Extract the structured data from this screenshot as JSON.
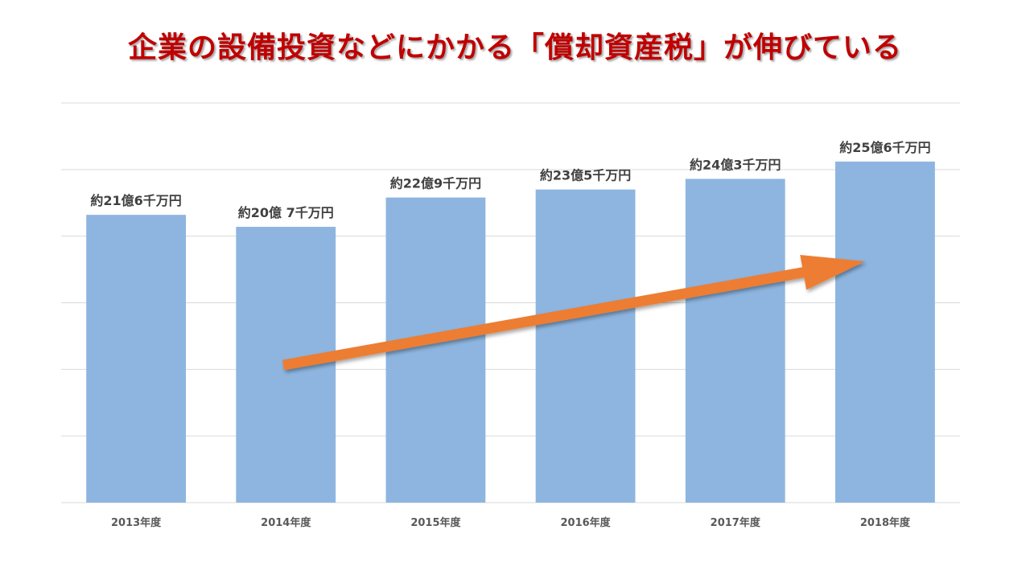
{
  "chart_data": {
    "type": "bar",
    "title": "企業の設備投資などにかかる「償却資産税」が伸びている",
    "categories": [
      "2013年度",
      "2014年度",
      "2015年度",
      "2016年度",
      "2017年度",
      "2018年度"
    ],
    "values": [
      21.6,
      20.7,
      22.9,
      23.5,
      24.3,
      25.6
    ],
    "data_labels": [
      "約21億6千万円",
      "約20億 7千万円",
      "約22億9千万円",
      "約23億5千万円",
      "約24億3千万円",
      "約25億6千万円"
    ],
    "ylim": [
      0,
      30
    ],
    "grid": true,
    "legend": "none",
    "trend_arrow": true,
    "colors": {
      "bar": "#8db5e0",
      "arrow": "#ed7d31",
      "title": "#c00000",
      "grid": "#d9d9d9"
    }
  }
}
